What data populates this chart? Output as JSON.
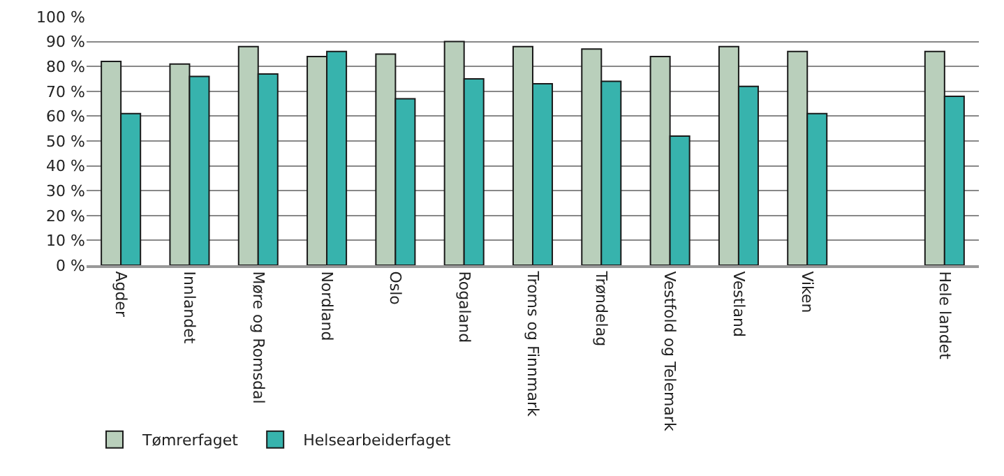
{
  "chart_data": {
    "type": "bar",
    "categories": [
      "Agder",
      "Innlandet",
      "Møre og Romsdal",
      "Nordland",
      "Oslo",
      "Rogaland",
      "Troms og Finnmark",
      "Trøndelag",
      "Vestfold og Telemark",
      "Vestland",
      "Viken",
      null,
      "Hele landet"
    ],
    "series": [
      {
        "name": "Tømrerfaget",
        "color": "#b9cfbb",
        "values": [
          82,
          81,
          88,
          84,
          85,
          90,
          88,
          87,
          84,
          88,
          86,
          null,
          86
        ]
      },
      {
        "name": "Helsearbeiderfaget",
        "color": "#37b3ad",
        "values": [
          61,
          76,
          77,
          86,
          67,
          75,
          73,
          74,
          52,
          72,
          61,
          null,
          68
        ]
      }
    ],
    "ylim": [
      0,
      100
    ],
    "yticks": [
      {
        "value": 0,
        "label": "0 %"
      },
      {
        "value": 10,
        "label": "10 %"
      },
      {
        "value": 20,
        "label": "20 %"
      },
      {
        "value": 30,
        "label": "30 %"
      },
      {
        "value": 40,
        "label": "40 %"
      },
      {
        "value": 50,
        "label": "50 %"
      },
      {
        "value": 60,
        "label": "60 %"
      },
      {
        "value": 70,
        "label": "70 %"
      },
      {
        "value": 80,
        "label": "80 %"
      },
      {
        "value": 90,
        "label": "90 %"
      },
      {
        "value": 100,
        "label": "100 %"
      }
    ],
    "grid": "y",
    "legend": "bottom left"
  }
}
